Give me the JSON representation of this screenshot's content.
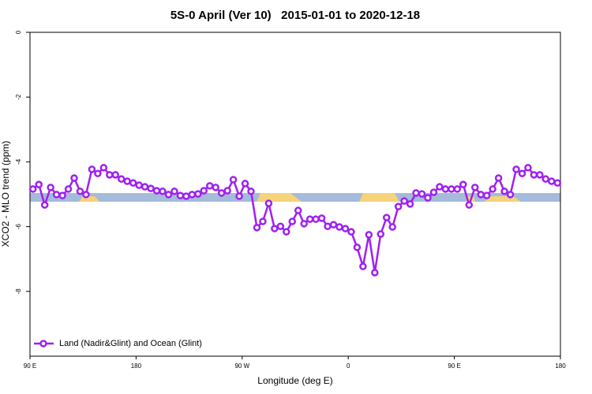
{
  "chart_data": {
    "type": "line",
    "title": "5S-0 April (Ver 10)   2015-01-01 to 2020-12-18",
    "x_label": "Longitude (deg E)",
    "y_label": "XCO2 - MLO trend (ppm)",
    "xlim": [
      90,
      540
    ],
    "ylim": [
      -10,
      0
    ],
    "xticks": [
      {
        "value": 90,
        "label": "90 E"
      },
      180,
      {
        "value": 270,
        "label": "90 W"
      },
      {
        "value": 360,
        "label": "0"
      },
      {
        "value": 450,
        "label": "90 E"
      },
      {
        "value": 540,
        "label": "180"
      }
    ],
    "yticks": [
      0,
      -2,
      -4,
      -6,
      -8
    ],
    "legend_position": "lower left",
    "x": [
      92.5,
      97.5,
      102.5,
      107.5,
      112.5,
      117.5,
      122.5,
      127.5,
      132.5,
      137.5,
      142.5,
      147.5,
      152.5,
      157.5,
      162.5,
      167.5,
      172.5,
      177.5,
      182.5,
      187.5,
      192.5,
      197.5,
      202.5,
      207.5,
      212.5,
      217.5,
      222.5,
      227.5,
      232.5,
      237.5,
      242.5,
      247.5,
      252.5,
      257.5,
      262.5,
      267.5,
      272.5,
      277.5,
      282.5,
      287.5,
      292.5,
      297.5,
      302.5,
      307.5,
      312.5,
      317.5,
      322.5,
      327.5,
      332.5,
      337.5,
      342.5,
      347.5,
      352.5,
      357.5,
      362.5,
      367.5,
      372.5,
      377.5,
      382.5,
      387.5,
      392.5,
      397.5,
      402.5,
      407.5,
      412.5,
      417.5,
      422.5,
      427.5,
      432.5,
      437.5,
      442.5,
      447.5,
      452.5,
      457.5,
      462.5,
      467.5,
      472.5,
      477.5,
      482.5,
      487.5,
      492.5,
      497.5,
      502.5,
      507.5,
      512.5,
      517.5,
      522.5,
      527.5,
      532.5,
      537.5
    ],
    "series": [
      {
        "name": "Land (Nadir&Glint) and Ocean (Glint)",
        "color": "#a020f0",
        "values": [
          -4.84,
          -4.7,
          -5.33,
          -4.79,
          -5.01,
          -5.04,
          -4.84,
          -4.5,
          -4.91,
          -5.01,
          -4.23,
          -4.36,
          -4.18,
          -4.4,
          -4.4,
          -4.53,
          -4.6,
          -4.65,
          -4.72,
          -4.77,
          -4.82,
          -4.89,
          -4.91,
          -5.01,
          -4.91,
          -5.04,
          -5.06,
          -5.01,
          -4.99,
          -4.89,
          -4.74,
          -4.79,
          -4.96,
          -4.89,
          -4.55,
          -5.06,
          -4.67,
          -4.91,
          -6.03,
          -5.84,
          -5.28,
          -6.06,
          -5.99,
          -6.16,
          -5.84,
          -5.5,
          -5.91,
          -5.77,
          -5.77,
          -5.74,
          -5.99,
          -5.94,
          -6.01,
          -6.06,
          -6.16,
          -6.64,
          -7.23,
          -6.25,
          -7.42,
          -6.23,
          -5.72,
          -6.01,
          -5.38,
          -5.21,
          -5.3,
          -4.96,
          -4.99,
          -5.11,
          -4.94,
          -4.77,
          -4.84,
          -4.84,
          -4.84,
          -4.7,
          -5.33,
          -4.79,
          -5.01,
          -5.04,
          -4.84,
          -4.5,
          -4.91,
          -5.01,
          -4.23,
          -4.36,
          -4.18,
          -4.4,
          -4.4,
          -4.53,
          -4.6,
          -4.65
        ]
      }
    ]
  }
}
